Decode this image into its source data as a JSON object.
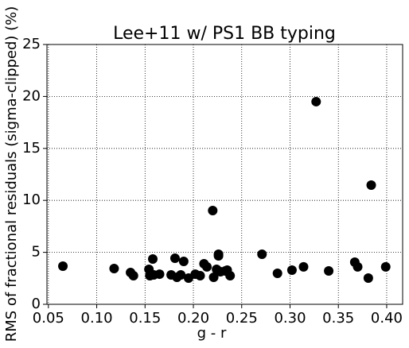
{
  "chart_data": {
    "type": "scatter",
    "title": "Lee+11 w/ PS1 BB typing",
    "x_label": "g - r",
    "y_label": "RMS of fractional residuals (sigma-clipped) (%)",
    "color": "#000000",
    "grid": true,
    "xlim": [
      0.0485,
      0.4165
    ],
    "ylim": [
      0,
      25
    ],
    "xticks": [
      0.05,
      {
        "value": 0.1,
        "label": "0.10"
      },
      0.15,
      {
        "value": 0.2,
        "label": "0.20"
      },
      0.25,
      {
        "value": 0.3,
        "label": "0.30"
      },
      0.35,
      {
        "value": 0.4,
        "label": "0.40"
      }
    ],
    "yticks": [
      0,
      5,
      10,
      15,
      20,
      25
    ],
    "x": [
      0.065,
      0.118,
      0.135,
      0.138,
      0.154,
      0.155,
      0.158,
      0.159,
      0.165,
      0.177,
      0.181,
      0.183,
      0.187,
      0.19,
      0.195,
      0.202,
      0.207,
      0.211,
      0.214,
      0.22,
      0.221,
      0.224,
      0.226,
      0.226,
      0.228,
      0.233,
      0.235,
      0.238,
      0.271,
      0.287,
      0.302,
      0.314,
      0.327,
      0.34,
      0.367,
      0.37,
      0.381,
      0.384,
      0.399
    ],
    "values": [
      3.67,
      3.44,
      3.06,
      2.75,
      3.36,
      2.75,
      4.36,
      2.83,
      2.9,
      2.83,
      4.43,
      2.6,
      2.83,
      4.13,
      2.52,
      2.9,
      2.75,
      3.9,
      3.6,
      9.02,
      2.6,
      3.36,
      4.66,
      4.82,
      3.13,
      3.21,
      3.29,
      2.75,
      4.82,
      2.98,
      3.29,
      3.6,
      19.5,
      3.21,
      4.05,
      3.6,
      2.52,
      11.47,
      3.6
    ]
  }
}
